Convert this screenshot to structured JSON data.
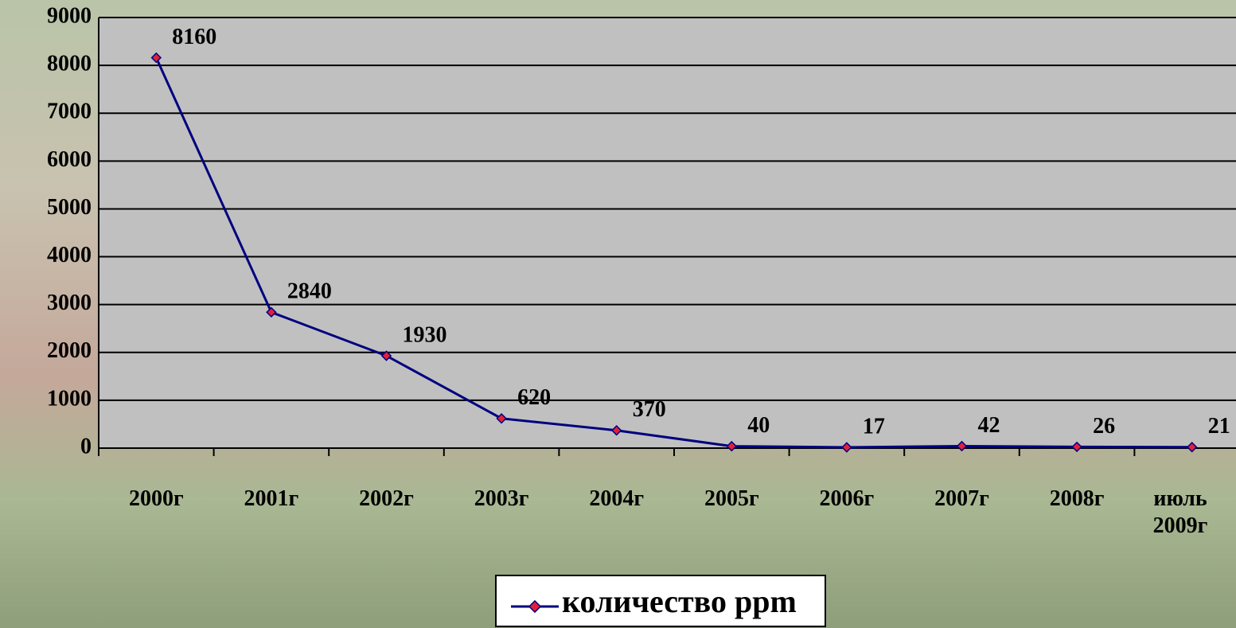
{
  "chart_data": {
    "type": "line",
    "categories": [
      "2000г",
      "2001г",
      "2002г",
      "2003г",
      "2004г",
      "2005г",
      "2006г",
      "2007г",
      "2008г",
      "июль 2009г"
    ],
    "series": [
      {
        "name": "количество ppm",
        "color": "#000080",
        "marker_color": "#e0203a",
        "values": [
          8160,
          2840,
          1930,
          620,
          370,
          40,
          17,
          42,
          26,
          21
        ]
      }
    ],
    "ylim": [
      0,
      9000
    ],
    "yticks": [
      0,
      1000,
      2000,
      3000,
      4000,
      5000,
      6000,
      7000,
      8000,
      9000
    ],
    "grid": true,
    "legend": "bottom"
  }
}
